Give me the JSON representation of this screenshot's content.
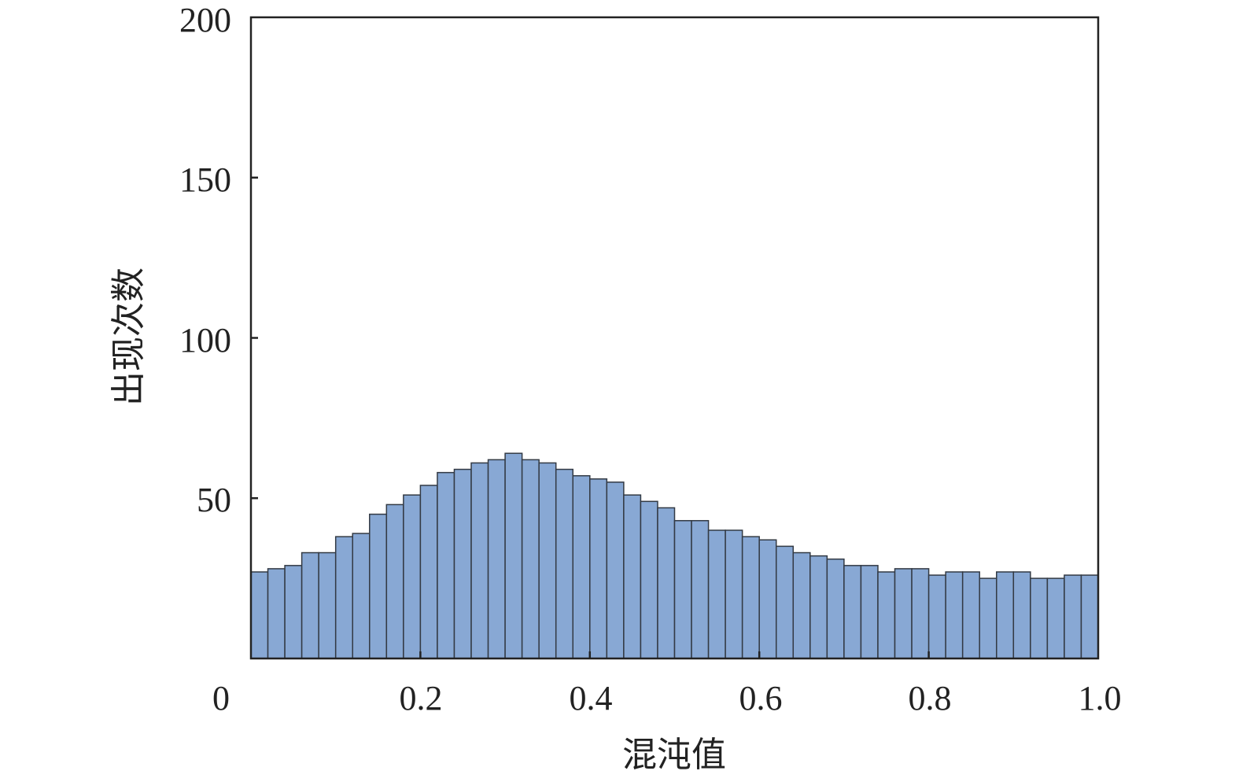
{
  "chart_data": {
    "type": "bar",
    "subtype": "histogram",
    "xlabel": "混沌值",
    "ylabel": "出现次数",
    "xlim": [
      0,
      1.0
    ],
    "ylim": [
      0,
      200
    ],
    "x_ticks": [
      "0",
      "0.2",
      "0.4",
      "0.6",
      "0.8",
      "1.0"
    ],
    "x_tick_values": [
      0,
      0.2,
      0.4,
      0.6,
      0.8,
      1.0
    ],
    "y_ticks": [
      "50",
      "100",
      "150",
      "200"
    ],
    "y_tick_values": [
      50,
      100,
      150,
      200
    ],
    "bins": 50,
    "values": [
      27,
      28,
      29,
      33,
      33,
      38,
      39,
      45,
      48,
      51,
      54,
      58,
      59,
      61,
      62,
      64,
      62,
      61,
      59,
      57,
      56,
      55,
      51,
      49,
      47,
      43,
      43,
      40,
      40,
      38,
      37,
      35,
      33,
      32,
      31,
      29,
      29,
      27,
      28,
      28,
      26,
      27,
      27,
      25,
      27,
      27,
      25,
      25,
      26,
      26
    ],
    "grid": false,
    "bar_color": "#88a8d4",
    "edge_color": "#333a44"
  }
}
